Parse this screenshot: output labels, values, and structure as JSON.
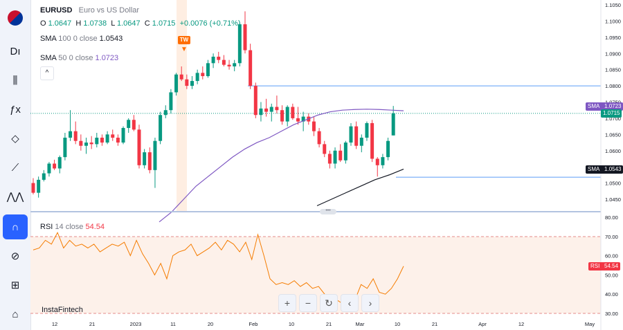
{
  "sidebar": {
    "items": [
      {
        "icon": "flag-icon"
      },
      {
        "icon": "chart-type-icon",
        "glyph": "Dı"
      },
      {
        "icon": "candles-icon",
        "glyph": "⫼"
      },
      {
        "icon": "indicators-icon",
        "glyph": "ƒx"
      },
      {
        "icon": "drawing-icon",
        "glyph": "◇"
      },
      {
        "icon": "trend-line-icon",
        "glyph": "⟋"
      },
      {
        "icon": "pattern-icon",
        "glyph": "⋀⋀"
      },
      {
        "icon": "magnet-icon",
        "glyph": "∩",
        "active": true
      },
      {
        "icon": "hide-drawings-icon",
        "glyph": "⊘"
      },
      {
        "icon": "lock-icon",
        "glyph": "⊞"
      },
      {
        "icon": "trash-icon",
        "glyph": "⌂"
      }
    ]
  },
  "legend": {
    "symbol": "EURUSD",
    "description": "Euro vs US Dollar",
    "o_label": "O",
    "o_value": "1.0647",
    "h_label": "H",
    "h_value": "1.0738",
    "l_label": "L",
    "l_value": "1.0647",
    "c_label": "C",
    "c_value": "1.0715",
    "change": "+0.0076 (+0.71%)",
    "sma100_name": "SMA",
    "sma100_params": "100 0 close",
    "sma100_value": "1.0543",
    "sma50_name": "SMA",
    "sma50_params": "50 0 close",
    "sma50_value": "1.0723",
    "collapse_glyph": "^"
  },
  "tw_badge": "TW",
  "rsi": {
    "name": "RSI",
    "params": "14 close",
    "value": "54.54",
    "tag_label": "RSI",
    "tag_value": "54.54"
  },
  "watermark": "InstaFintech",
  "controls": {
    "zoom_in": "+",
    "zoom_out": "−",
    "reset": "↻",
    "prev": "‹",
    "next": "›"
  },
  "price_tags": {
    "sma_label": "SMA",
    "sma50_value": "1.0723",
    "last_price": "1.0715",
    "sma100_label": "SMA",
    "sma100_value": "1.0543"
  },
  "colors": {
    "up": "#089981",
    "down": "#f23645",
    "sma50": "#7e57c2",
    "sma100": "#131722",
    "rsi_line": "#f57c00",
    "accent": "#2962ff",
    "hline": "#5b9cf6"
  },
  "chart_data": {
    "type": "candlestick",
    "price_axis": {
      "ticks": [
        "1.1050",
        "1.1000",
        "1.0950",
        "1.0900",
        "1.0850",
        "1.0800",
        "1.0750",
        "1.0700",
        "1.0650",
        "1.0600",
        "1.0550",
        "1.0500",
        "1.0450"
      ]
    },
    "rsi_axis": {
      "ticks": [
        "80.00",
        "70.00",
        "60.00",
        "50.00",
        "40.00",
        "30.00"
      ]
    },
    "time_axis": {
      "ticks": [
        "12",
        "21",
        "2023",
        "11",
        "20",
        "Feb",
        "10",
        "21",
        "Mar",
        "10",
        "21",
        "Apr",
        "12",
        "May"
      ]
    },
    "horizontal_lines": [
      1.08,
      1.0518
    ],
    "candles": [
      {
        "o": 1.05,
        "h": 1.0515,
        "l": 1.0465,
        "c": 1.047
      },
      {
        "o": 1.047,
        "h": 1.052,
        "l": 1.0455,
        "c": 1.051
      },
      {
        "o": 1.051,
        "h": 1.054,
        "l": 1.0505,
        "c": 1.053
      },
      {
        "o": 1.053,
        "h": 1.0565,
        "l": 1.052,
        "c": 1.056
      },
      {
        "o": 1.056,
        "h": 1.0572,
        "l": 1.054,
        "c": 1.0545
      },
      {
        "o": 1.0545,
        "h": 1.0585,
        "l": 1.053,
        "c": 1.058
      },
      {
        "o": 1.058,
        "h": 1.0655,
        "l": 1.057,
        "c": 1.064
      },
      {
        "o": 1.064,
        "h": 1.0725,
        "l": 1.063,
        "c": 1.066
      },
      {
        "o": 1.066,
        "h": 1.069,
        "l": 1.062,
        "c": 1.063
      },
      {
        "o": 1.063,
        "h": 1.065,
        "l": 1.06,
        "c": 1.0615
      },
      {
        "o": 1.0615,
        "h": 1.064,
        "l": 1.059,
        "c": 1.0625
      },
      {
        "o": 1.0625,
        "h": 1.0645,
        "l": 1.0605,
        "c": 1.062
      },
      {
        "o": 1.062,
        "h": 1.0655,
        "l": 1.061,
        "c": 1.064
      },
      {
        "o": 1.064,
        "h": 1.065,
        "l": 1.0615,
        "c": 1.0625
      },
      {
        "o": 1.0625,
        "h": 1.066,
        "l": 1.062,
        "c": 1.065
      },
      {
        "o": 1.065,
        "h": 1.0665,
        "l": 1.063,
        "c": 1.064
      },
      {
        "o": 1.064,
        "h": 1.065,
        "l": 1.0615,
        "c": 1.0625
      },
      {
        "o": 1.0625,
        "h": 1.0675,
        "l": 1.062,
        "c": 1.067
      },
      {
        "o": 1.067,
        "h": 1.07,
        "l": 1.0655,
        "c": 1.0695
      },
      {
        "o": 1.0695,
        "h": 1.071,
        "l": 1.066,
        "c": 1.0665
      },
      {
        "o": 1.0665,
        "h": 1.068,
        "l": 1.0545,
        "c": 1.0555
      },
      {
        "o": 1.0555,
        "h": 1.0605,
        "l": 1.0545,
        "c": 1.0595
      },
      {
        "o": 1.0595,
        "h": 1.061,
        "l": 1.053,
        "c": 1.054
      },
      {
        "o": 1.054,
        "h": 1.064,
        "l": 1.0485,
        "c": 1.063
      },
      {
        "o": 1.063,
        "h": 1.072,
        "l": 1.062,
        "c": 1.071
      },
      {
        "o": 1.071,
        "h": 1.074,
        "l": 1.07,
        "c": 1.0725
      },
      {
        "o": 1.0725,
        "h": 1.079,
        "l": 1.0715,
        "c": 1.078
      },
      {
        "o": 1.078,
        "h": 1.084,
        "l": 1.077,
        "c": 1.0835
      },
      {
        "o": 1.0835,
        "h": 1.086,
        "l": 1.0815,
        "c": 1.082
      },
      {
        "o": 1.082,
        "h": 1.0835,
        "l": 1.079,
        "c": 1.08
      },
      {
        "o": 1.08,
        "h": 1.083,
        "l": 1.079,
        "c": 1.0815
      },
      {
        "o": 1.0815,
        "h": 1.085,
        "l": 1.0805,
        "c": 1.084
      },
      {
        "o": 1.084,
        "h": 1.086,
        "l": 1.082,
        "c": 1.083
      },
      {
        "o": 1.083,
        "h": 1.088,
        "l": 1.0825,
        "c": 1.087
      },
      {
        "o": 1.087,
        "h": 1.09,
        "l": 1.0855,
        "c": 1.089
      },
      {
        "o": 1.089,
        "h": 1.0905,
        "l": 1.087,
        "c": 1.088
      },
      {
        "o": 1.088,
        "h": 1.0895,
        "l": 1.086,
        "c": 1.0865
      },
      {
        "o": 1.0865,
        "h": 1.088,
        "l": 1.085,
        "c": 1.086
      },
      {
        "o": 1.086,
        "h": 1.088,
        "l": 1.0845,
        "c": 1.087
      },
      {
        "o": 1.087,
        "h": 1.0995,
        "l": 1.086,
        "c": 1.099
      },
      {
        "o": 1.099,
        "h": 1.103,
        "l": 1.09,
        "c": 1.091
      },
      {
        "o": 1.091,
        "h": 1.093,
        "l": 1.079,
        "c": 1.08
      },
      {
        "o": 1.08,
        "h": 1.081,
        "l": 1.07,
        "c": 1.071
      },
      {
        "o": 1.071,
        "h": 1.075,
        "l": 1.069,
        "c": 1.073
      },
      {
        "o": 1.073,
        "h": 1.076,
        "l": 1.0705,
        "c": 1.072
      },
      {
        "o": 1.072,
        "h": 1.0745,
        "l": 1.069,
        "c": 1.0735
      },
      {
        "o": 1.0735,
        "h": 1.077,
        "l": 1.0715,
        "c": 1.0725
      },
      {
        "o": 1.0725,
        "h": 1.074,
        "l": 1.068,
        "c": 1.069
      },
      {
        "o": 1.069,
        "h": 1.074,
        "l": 1.0675,
        "c": 1.0735
      },
      {
        "o": 1.0735,
        "h": 1.0745,
        "l": 1.0695,
        "c": 1.07
      },
      {
        "o": 1.07,
        "h": 1.0735,
        "l": 1.068,
        "c": 1.069
      },
      {
        "o": 1.069,
        "h": 1.072,
        "l": 1.066,
        "c": 1.0705
      },
      {
        "o": 1.0705,
        "h": 1.0715,
        "l": 1.068,
        "c": 1.069
      },
      {
        "o": 1.069,
        "h": 1.0705,
        "l": 1.0645,
        "c": 1.066
      },
      {
        "o": 1.066,
        "h": 1.067,
        "l": 1.061,
        "c": 1.062
      },
      {
        "o": 1.062,
        "h": 1.063,
        "l": 1.058,
        "c": 1.059
      },
      {
        "o": 1.059,
        "h": 1.06,
        "l": 1.0545,
        "c": 1.056
      },
      {
        "o": 1.056,
        "h": 1.061,
        "l": 1.0545,
        "c": 1.06
      },
      {
        "o": 1.06,
        "h": 1.062,
        "l": 1.0565,
        "c": 1.057
      },
      {
        "o": 1.057,
        "h": 1.063,
        "l": 1.056,
        "c": 1.0625
      },
      {
        "o": 1.0625,
        "h": 1.0685,
        "l": 1.0615,
        "c": 1.0675
      },
      {
        "o": 1.0675,
        "h": 1.069,
        "l": 1.0605,
        "c": 1.0615
      },
      {
        "o": 1.0615,
        "h": 1.065,
        "l": 1.0595,
        "c": 1.064
      },
      {
        "o": 1.064,
        "h": 1.069,
        "l": 1.063,
        "c": 1.0685
      },
      {
        "o": 1.0685,
        "h": 1.0695,
        "l": 1.0565,
        "c": 1.0575
      },
      {
        "o": 1.0575,
        "h": 1.058,
        "l": 1.052,
        "c": 1.0555
      },
      {
        "o": 1.0555,
        "h": 1.059,
        "l": 1.0545,
        "c": 1.058
      },
      {
        "o": 1.058,
        "h": 1.064,
        "l": 1.057,
        "c": 1.063
      },
      {
        "o": 1.0647,
        "h": 1.0738,
        "l": 1.0647,
        "c": 1.0715
      }
    ],
    "rsi_values": [
      63,
      64,
      68,
      66,
      72,
      64,
      68,
      65,
      66,
      64,
      66,
      62,
      64,
      66,
      65,
      67,
      60,
      68,
      61,
      56,
      50,
      56,
      48,
      60,
      62,
      63,
      66,
      60,
      62,
      64,
      67,
      63,
      68,
      66,
      62,
      67,
      58,
      71,
      60,
      48,
      45,
      46,
      45,
      47,
      44,
      46,
      43,
      44,
      40,
      38,
      37,
      35,
      34,
      37,
      45,
      43,
      48,
      41,
      40,
      43,
      48,
      54.54
    ],
    "sma50": [
      1.038,
      1.041,
      1.045,
      1.049,
      1.052,
      1.055,
      1.058,
      1.0605,
      1.0625,
      1.064,
      1.066,
      1.068,
      1.0695,
      1.071,
      1.072,
      1.0725,
      1.0727,
      1.0728,
      1.0727,
      1.0725,
      1.0723
    ],
    "sma100": [
      1.043,
      1.045,
      1.047,
      1.049,
      1.051,
      1.0525,
      1.0543
    ]
  }
}
